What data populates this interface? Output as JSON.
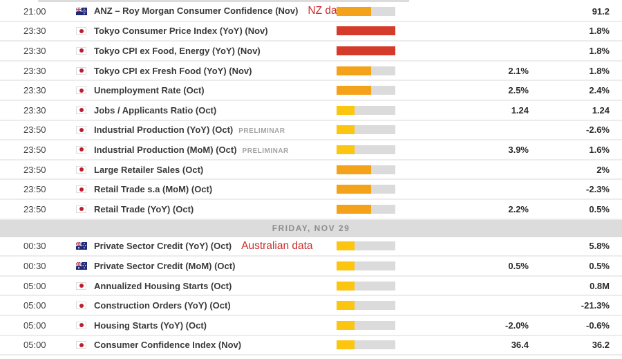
{
  "colors": {
    "high": "#d53b2b",
    "medium": "#f5a21b",
    "low": "#fbc510",
    "track": "#dbdbdb",
    "annotation": "#cc2b2b"
  },
  "sections": [
    {
      "divider": "",
      "rows": [
        {
          "time": "21:00",
          "flag": "new-zealand",
          "event": "ANZ – Roy Morgan Consumer Confidence (Nov)",
          "tag": "",
          "annotation": "NZ data",
          "bar": {
            "color": "medium",
            "fill_pct": 59
          },
          "forecast": "",
          "previous": "91.2"
        },
        {
          "time": "23:30",
          "flag": "japan",
          "event": "Tokyo Consumer Price Index (YoY) (Nov)",
          "tag": "",
          "annotation": "",
          "bar": {
            "color": "high",
            "fill_pct": 100
          },
          "forecast": "",
          "previous": "1.8%"
        },
        {
          "time": "23:30",
          "flag": "japan",
          "event": "Tokyo CPI ex Food, Energy (YoY) (Nov)",
          "tag": "",
          "annotation": "",
          "bar": {
            "color": "high",
            "fill_pct": 100
          },
          "forecast": "",
          "previous": "1.8%"
        },
        {
          "time": "23:30",
          "flag": "japan",
          "event": "Tokyo CPI ex Fresh Food (YoY) (Nov)",
          "tag": "",
          "annotation": "",
          "bar": {
            "color": "medium",
            "fill_pct": 59
          },
          "forecast": "2.1%",
          "previous": "1.8%"
        },
        {
          "time": "23:30",
          "flag": "japan",
          "event": "Unemployment Rate (Oct)",
          "tag": "",
          "annotation": "",
          "bar": {
            "color": "medium",
            "fill_pct": 59
          },
          "forecast": "2.5%",
          "previous": "2.4%"
        },
        {
          "time": "23:30",
          "flag": "japan",
          "event": "Jobs / Applicants Ratio (Oct)",
          "tag": "",
          "annotation": "",
          "bar": {
            "color": "low",
            "fill_pct": 30
          },
          "forecast": "1.24",
          "previous": "1.24"
        },
        {
          "time": "23:50",
          "flag": "japan",
          "event": "Industrial Production (YoY) (Oct)",
          "tag": "PRELIMINAR",
          "annotation": "",
          "bar": {
            "color": "low",
            "fill_pct": 30
          },
          "forecast": "",
          "previous": "-2.6%"
        },
        {
          "time": "23:50",
          "flag": "japan",
          "event": "Industrial Production (MoM) (Oct)",
          "tag": "PRELIMINAR",
          "annotation": "",
          "bar": {
            "color": "low",
            "fill_pct": 30
          },
          "forecast": "3.9%",
          "previous": "1.6%"
        },
        {
          "time": "23:50",
          "flag": "japan",
          "event": "Large Retailer Sales (Oct)",
          "tag": "",
          "annotation": "",
          "bar": {
            "color": "medium",
            "fill_pct": 59
          },
          "forecast": "",
          "previous": "2%"
        },
        {
          "time": "23:50",
          "flag": "japan",
          "event": "Retail Trade s.a (MoM) (Oct)",
          "tag": "",
          "annotation": "",
          "bar": {
            "color": "medium",
            "fill_pct": 59
          },
          "forecast": "",
          "previous": "-2.3%"
        },
        {
          "time": "23:50",
          "flag": "japan",
          "event": "Retail Trade (YoY) (Oct)",
          "tag": "",
          "annotation": "",
          "bar": {
            "color": "medium",
            "fill_pct": 59
          },
          "forecast": "2.2%",
          "previous": "0.5%"
        }
      ]
    },
    {
      "divider": "FRIDAY, NOV 29",
      "rows": [
        {
          "time": "00:30",
          "flag": "australia",
          "event": "Private Sector Credit (YoY) (Oct)",
          "tag": "",
          "annotation": "Australian data",
          "bar": {
            "color": "low",
            "fill_pct": 30
          },
          "forecast": "",
          "previous": "5.8%"
        },
        {
          "time": "00:30",
          "flag": "australia",
          "event": "Private Sector Credit (MoM) (Oct)",
          "tag": "",
          "annotation": "",
          "bar": {
            "color": "low",
            "fill_pct": 30
          },
          "forecast": "0.5%",
          "previous": "0.5%"
        },
        {
          "time": "05:00",
          "flag": "japan",
          "event": "Annualized Housing Starts (Oct)",
          "tag": "",
          "annotation": "",
          "bar": {
            "color": "low",
            "fill_pct": 30
          },
          "forecast": "",
          "previous": "0.8M"
        },
        {
          "time": "05:00",
          "flag": "japan",
          "event": "Construction Orders (YoY) (Oct)",
          "tag": "",
          "annotation": "",
          "bar": {
            "color": "low",
            "fill_pct": 30
          },
          "forecast": "",
          "previous": "-21.3%"
        },
        {
          "time": "05:00",
          "flag": "japan",
          "event": "Housing Starts (YoY) (Oct)",
          "tag": "",
          "annotation": "",
          "bar": {
            "color": "low",
            "fill_pct": 30
          },
          "forecast": "-2.0%",
          "previous": "-0.6%"
        },
        {
          "time": "05:00",
          "flag": "japan",
          "event": "Consumer Confidence Index (Nov)",
          "tag": "",
          "annotation": "",
          "bar": {
            "color": "low",
            "fill_pct": 30
          },
          "forecast": "36.4",
          "previous": "36.2"
        }
      ]
    }
  ]
}
